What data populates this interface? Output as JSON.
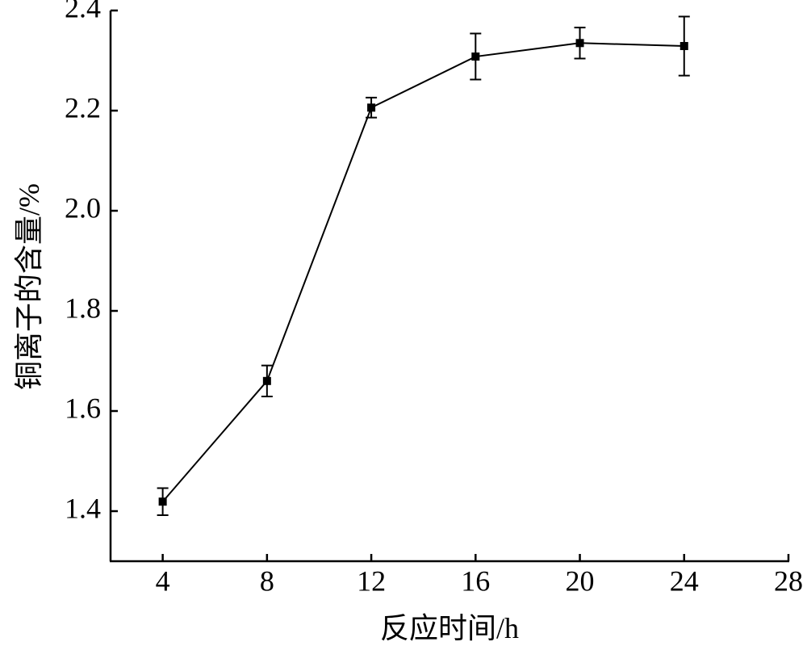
{
  "chart_data": {
    "type": "line",
    "x_label": "反应时间/h",
    "y_label": "铜离子的含量/%",
    "xlim": [
      2,
      28
    ],
    "xticks": [
      4,
      8,
      12,
      16,
      20,
      24,
      28
    ],
    "ylim": [
      1.3,
      2.4
    ],
    "yticks": [
      {
        "value": 1.4,
        "label": "1.4"
      },
      {
        "value": 1.6,
        "label": "1.6"
      },
      {
        "value": 1.8,
        "label": "1.8"
      },
      {
        "value": 2.0,
        "label": "2.0"
      },
      {
        "value": 2.2,
        "label": "2.2"
      },
      {
        "value": 2.4,
        "label": "2.4"
      }
    ],
    "x": [
      4,
      8,
      12,
      16,
      20,
      24
    ],
    "series": [
      {
        "color": "#000000",
        "values": [
          1.419,
          1.66,
          2.206,
          2.308,
          2.335,
          2.329
        ],
        "errors": [
          0.027,
          0.031,
          0.02,
          0.046,
          0.031,
          0.059
        ]
      }
    ]
  }
}
